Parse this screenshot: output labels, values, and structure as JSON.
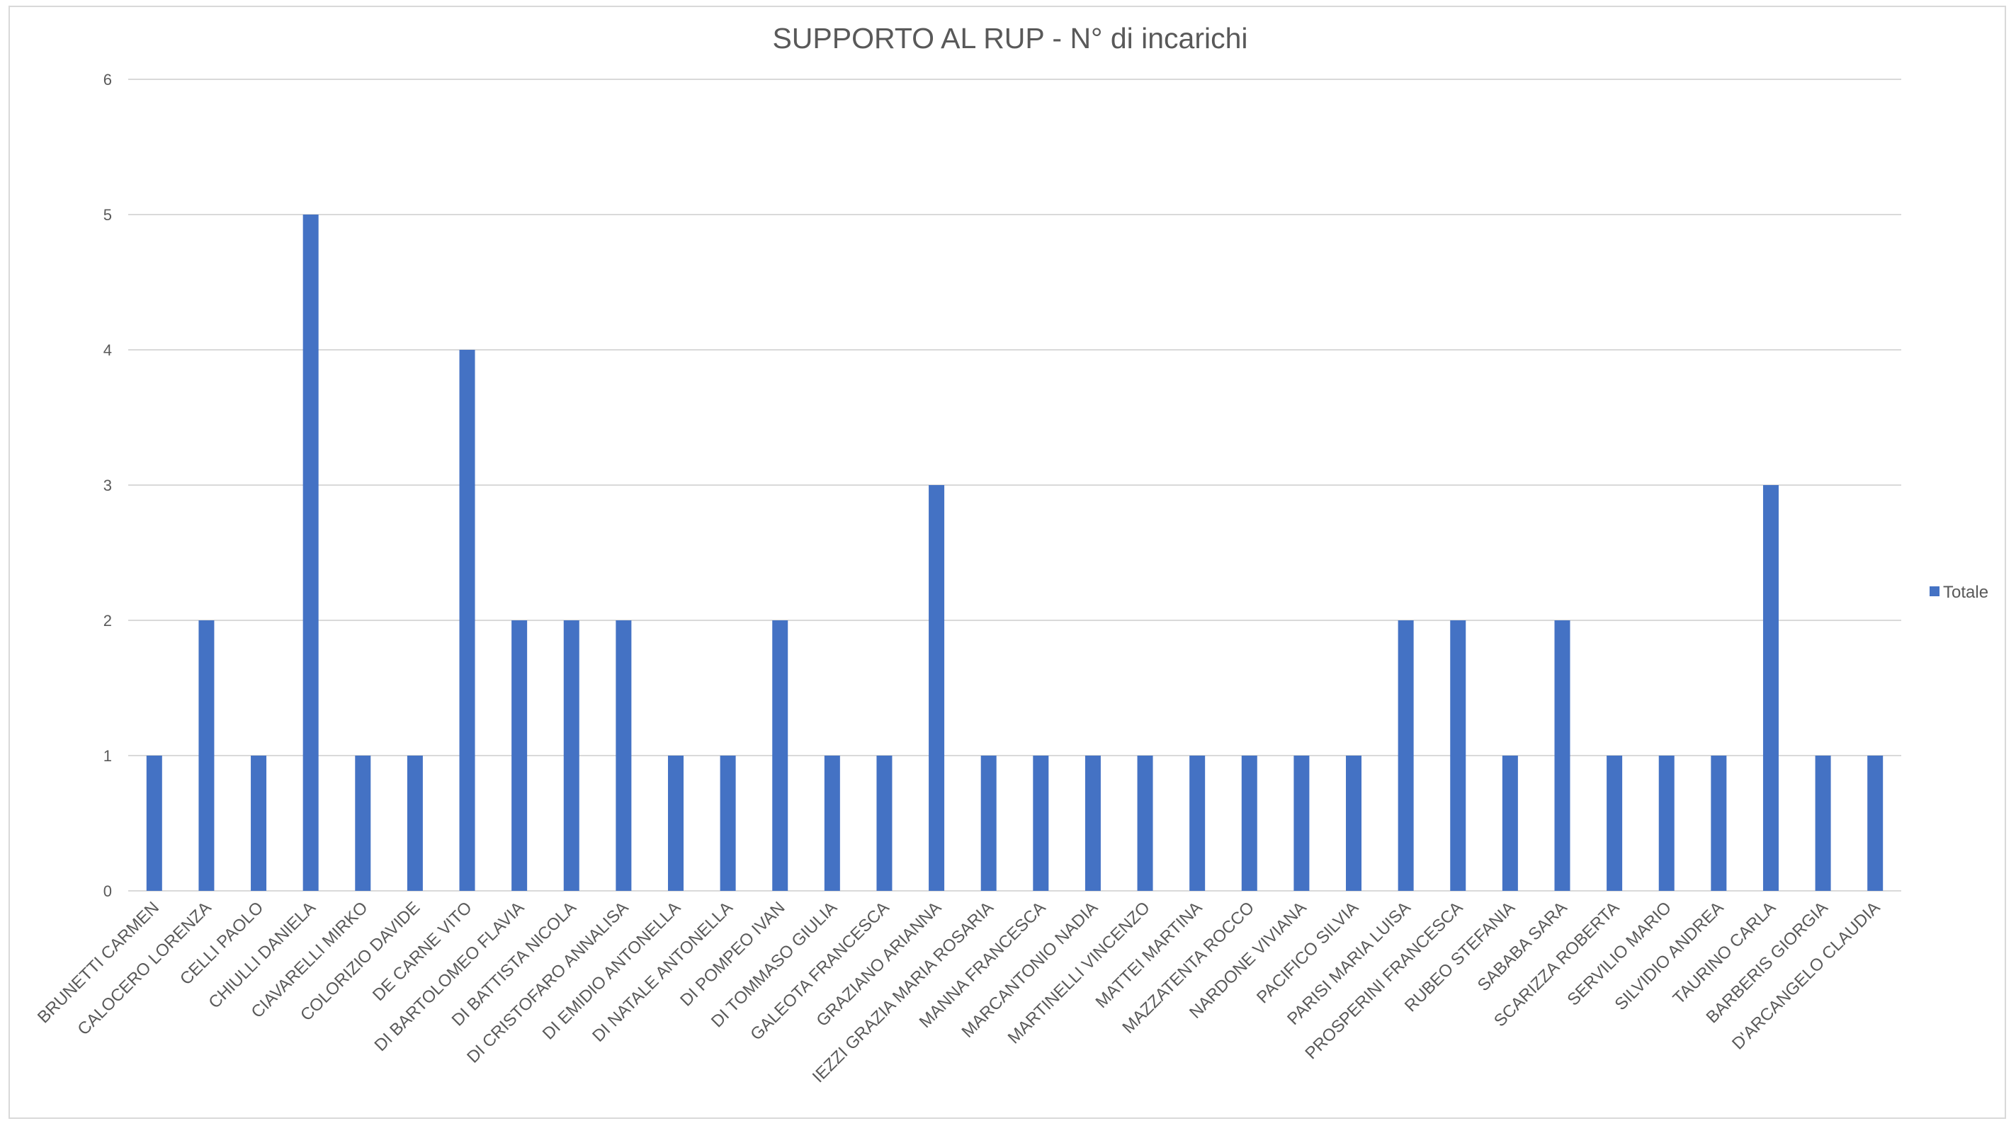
{
  "chart_data": {
    "type": "bar",
    "title": "SUPPORTO AL RUP - N°  di incarichi",
    "xlabel": "",
    "ylabel": "",
    "ylim": [
      0,
      6
    ],
    "y_ticks": [
      "0",
      "1",
      "2",
      "3",
      "4",
      "5",
      "6"
    ],
    "grid": true,
    "legend_position": "right",
    "categories": [
      "BRUNETTI CARMEN",
      "CALOCERO LORENZA",
      "CELLI PAOLO",
      "CHIULLI DANIELA",
      "CIAVARELLI MIRKO",
      "COLORIZIO DAVIDE",
      "DE CARNE VITO",
      "DI BARTOLOMEO FLAVIA",
      "DI BATTISTA  NICOLA",
      "DI CRISTOFARO ANNALISA",
      "DI EMIDIO ANTONELLA",
      "DI NATALE ANTONELLA",
      "DI POMPEO IVAN",
      "DI TOMMASO  GIULIA",
      "GALEOTA FRANCESCA",
      "GRAZIANO ARIANNA",
      "IEZZI GRAZIA MARIA ROSARIA",
      "MANNA FRANCESCA",
      "MARCANTONIO NADIA",
      "MARTINELLI  VINCENZO",
      "MATTEI MARTINA",
      "MAZZATENTA  ROCCO",
      "NARDONE VIVIANA",
      "PACIFICO SILVIA",
      "PARISI  MARIA LUISA",
      "PROSPERINI FRANCESCA",
      "RUBEO STEFANIA",
      "SABABA SARA",
      "SCARIZZA ROBERTA",
      "SERVILIO  MARIO",
      "SILVIDIO  ANDREA",
      "TAURINO  CARLA",
      "BARBERIS GIORGIA",
      "D'ARCANGELO CLAUDIA"
    ],
    "series": [
      {
        "name": "Totale",
        "color": "#4472c4",
        "values": [
          1,
          2,
          1,
          5,
          1,
          1,
          4,
          2,
          2,
          2,
          1,
          1,
          2,
          1,
          1,
          3,
          1,
          1,
          1,
          1,
          1,
          1,
          1,
          1,
          2,
          2,
          1,
          2,
          1,
          1,
          1,
          3,
          1,
          1
        ]
      }
    ]
  }
}
